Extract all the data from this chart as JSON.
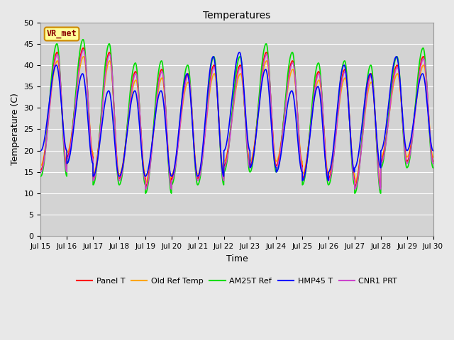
{
  "title": "Temperatures",
  "xlabel": "Time",
  "ylabel": "Temperature (C)",
  "annotation": "VR_met",
  "ylim": [
    0,
    50
  ],
  "yticks": [
    0,
    5,
    10,
    15,
    20,
    25,
    30,
    35,
    40,
    45,
    50
  ],
  "x_tick_labels": [
    "Jul 15",
    "Jul 16",
    "Jul 17",
    "Jul 18",
    "Jul 19",
    "Jul 20",
    "Jul 21",
    "Jul 22",
    "Jul 23",
    "Jul 24",
    "Jul 25",
    "Jul 26",
    "Jul 27",
    "Jul 28",
    "Jul 29",
    "Jul 30"
  ],
  "series": {
    "Panel T": {
      "color": "#ff0000",
      "lw": 1.2,
      "zorder": 3
    },
    "Old Ref Temp": {
      "color": "#ffa500",
      "lw": 1.2,
      "zorder": 2
    },
    "AM25T Ref": {
      "color": "#00dd00",
      "lw": 1.2,
      "zorder": 4
    },
    "HMP45 T": {
      "color": "#0000ff",
      "lw": 1.2,
      "zorder": 5
    },
    "CNR1 PRT": {
      "color": "#cc44cc",
      "lw": 1.2,
      "zorder": 6
    }
  },
  "bg_color": "#e8e8e8",
  "plot_bg_color": "#d3d3d3",
  "grid_color": "#ffffff",
  "annotation_bg": "#ffff99",
  "annotation_border": "#cc8800",
  "annotation_text_color": "#880000",
  "day_peaks": [
    45,
    46,
    45,
    40.5,
    41,
    40,
    42,
    42,
    45,
    43,
    40.5,
    41,
    40,
    42,
    44
  ],
  "day_mins_green": [
    14,
    17,
    12,
    12,
    10,
    12,
    12,
    15,
    15,
    15,
    12,
    12,
    10,
    16,
    16
  ],
  "day_mins_blue": [
    20,
    17,
    14,
    14,
    14,
    14,
    14,
    20,
    16,
    15,
    13,
    15,
    16,
    20,
    20
  ],
  "day_peaks_blue": [
    40,
    38,
    34,
    34,
    34,
    38,
    42,
    43,
    39,
    34,
    35,
    40,
    38,
    42,
    38
  ]
}
